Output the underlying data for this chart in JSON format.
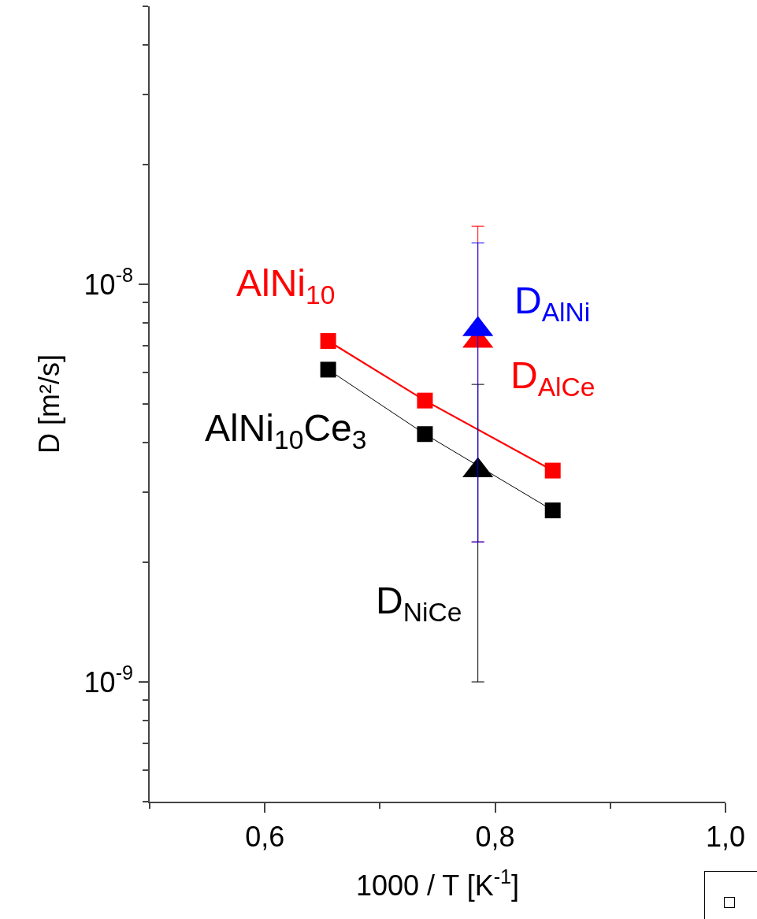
{
  "chart_data": {
    "type": "line",
    "xlabel": "1000 / T [K$^{-1}$]",
    "ylabel": "D [m²/s]",
    "log": "y",
    "grid": false,
    "legend": false,
    "xlim": [
      0.5,
      1.0
    ],
    "xticks": [
      {
        "value": 0.5,
        "label": null
      },
      {
        "value": 0.6,
        "label": "0,6"
      },
      {
        "value": 0.7,
        "label": null
      },
      {
        "value": 0.8,
        "label": "0,8"
      },
      {
        "value": 0.9,
        "label": null
      },
      {
        "value": 1.0,
        "label": "1,0"
      }
    ],
    "ylim": [
      5e-10,
      5e-08
    ],
    "yticks": [
      {
        "value": 5e-10,
        "label": null
      },
      {
        "value": 6e-10,
        "label": null
      },
      {
        "value": 7e-10,
        "label": null
      },
      {
        "value": 8e-10,
        "label": null
      },
      {
        "value": 9e-10,
        "label": null
      },
      {
        "value": 1e-09,
        "label": "10$^{-9}$"
      },
      {
        "value": 2e-09,
        "label": null
      },
      {
        "value": 3e-09,
        "label": null
      },
      {
        "value": 4e-09,
        "label": null
      },
      {
        "value": 5e-09,
        "label": null
      },
      {
        "value": 6e-09,
        "label": null
      },
      {
        "value": 7e-09,
        "label": null
      },
      {
        "value": 8e-09,
        "label": null
      },
      {
        "value": 9e-09,
        "label": null
      },
      {
        "value": 1e-08,
        "label": "10$^{-8}$"
      },
      {
        "value": 2e-08,
        "label": null
      },
      {
        "value": 3e-08,
        "label": null
      },
      {
        "value": 4e-08,
        "label": null
      },
      {
        "value": 5e-08,
        "label": null
      }
    ],
    "series": [
      {
        "name": "AlNi$_{10}$",
        "marker": "square",
        "color": "#ff0000",
        "x": [
          0.655,
          0.739,
          0.85
        ],
        "values": [
          7.2e-09,
          5.1e-09,
          3.4e-09
        ]
      },
      {
        "name": "AlNi$_{10}$Ce$_{3}$",
        "marker": "square",
        "color": "#000000",
        "x": [
          0.655,
          0.739,
          0.85
        ],
        "values": [
          6.1e-09,
          4.2e-09,
          2.7e-09
        ]
      },
      {
        "name": "D$_{AlCe}$",
        "type": "scatter",
        "marker": "triangle",
        "color": "#ff0000",
        "x": [
          0.785
        ],
        "values": [
          7.2e-09
        ],
        "errors": [
          [
            2.25e-09,
            1.4e-08
          ]
        ]
      },
      {
        "name": "D$_{NiCe}$",
        "type": "scatter",
        "marker": "triangle",
        "color": "#000000",
        "x": [
          0.785
        ],
        "values": [
          3.4e-09
        ],
        "errors": [
          [
            1e-09,
            5.6e-09
          ]
        ]
      },
      {
        "name": "D$_{AlNi}$",
        "type": "scatter",
        "marker": "triangle",
        "color": "#0000ff",
        "x": [
          0.785
        ],
        "values": [
          7.7e-09
        ],
        "errors": [
          [
            2.25e-09,
            1.27e-08
          ]
        ]
      }
    ]
  }
}
